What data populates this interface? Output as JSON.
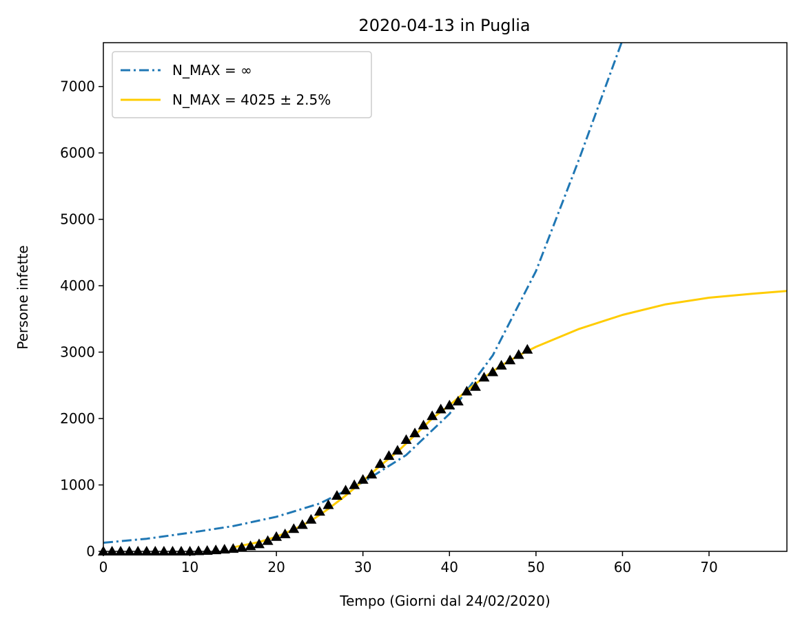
{
  "chart_data": {
    "type": "line",
    "title": "2020-04-13 in Puglia",
    "xlabel": "Tempo (Giorni dal 24/02/2020)",
    "ylabel": "Persone infette",
    "xlim": [
      0,
      79
    ],
    "ylim": [
      0,
      7660
    ],
    "xticks": [
      0,
      10,
      20,
      30,
      40,
      50,
      60,
      70
    ],
    "yticks": [
      0,
      1000,
      2000,
      3000,
      4000,
      5000,
      6000,
      7000
    ],
    "grid": false,
    "legend_position": "top-left",
    "legend": [
      {
        "label": "N_MAX = ∞",
        "color": "#1f77b4",
        "style": "dash-dot"
      },
      {
        "label": "N_MAX = 4025 ± 2.5%",
        "color": "#ffcc00",
        "style": "solid"
      }
    ],
    "series": [
      {
        "name": "N_MAX = ∞",
        "kind": "curve",
        "color": "#1f77b4",
        "style": "dash-dot",
        "x": [
          0,
          5,
          10,
          15,
          20,
          25,
          30,
          35,
          40,
          45,
          50,
          55,
          60
        ],
        "y": [
          130,
          190,
          280,
          380,
          520,
          720,
          1040,
          1450,
          2070,
          2950,
          4220,
          5910,
          7700
        ]
      },
      {
        "name": "N_MAX = 4025 ± 2.5%",
        "kind": "curve",
        "color": "#ffcc00",
        "style": "solid",
        "x": [
          15,
          18,
          20,
          22,
          24,
          26,
          28,
          30,
          32,
          34,
          36,
          38,
          40,
          42,
          44,
          46,
          48,
          50,
          55,
          60,
          65,
          70,
          75,
          79
        ],
        "y": [
          60,
          140,
          220,
          330,
          460,
          640,
          840,
          1060,
          1290,
          1500,
          1750,
          2000,
          2200,
          2420,
          2620,
          2800,
          2950,
          3080,
          3350,
          3560,
          3720,
          3820,
          3880,
          3920
        ]
      },
      {
        "name": "",
        "kind": "markers",
        "marker": "triangle",
        "color": "#000000",
        "x": [
          0,
          1,
          2,
          3,
          4,
          5,
          6,
          7,
          8,
          9,
          10,
          11,
          12,
          13,
          14,
          15,
          16,
          17,
          18,
          19,
          20,
          21,
          22,
          23,
          24,
          25,
          26,
          27,
          28,
          29,
          30,
          31,
          32,
          33,
          34,
          35,
          36,
          37,
          38,
          39,
          40,
          41,
          42,
          43,
          44,
          45,
          46,
          47,
          48,
          49
        ],
        "y": [
          0,
          0,
          0,
          0,
          0,
          0,
          0,
          0,
          0,
          0,
          0,
          5,
          10,
          20,
          30,
          40,
          60,
          80,
          110,
          160,
          220,
          260,
          340,
          400,
          480,
          600,
          700,
          840,
          920,
          1000,
          1080,
          1160,
          1320,
          1440,
          1520,
          1680,
          1780,
          1900,
          2040,
          2140,
          2200,
          2260,
          2410,
          2480,
          2620,
          2700,
          2800,
          2880,
          2960,
          3040
        ]
      }
    ]
  }
}
